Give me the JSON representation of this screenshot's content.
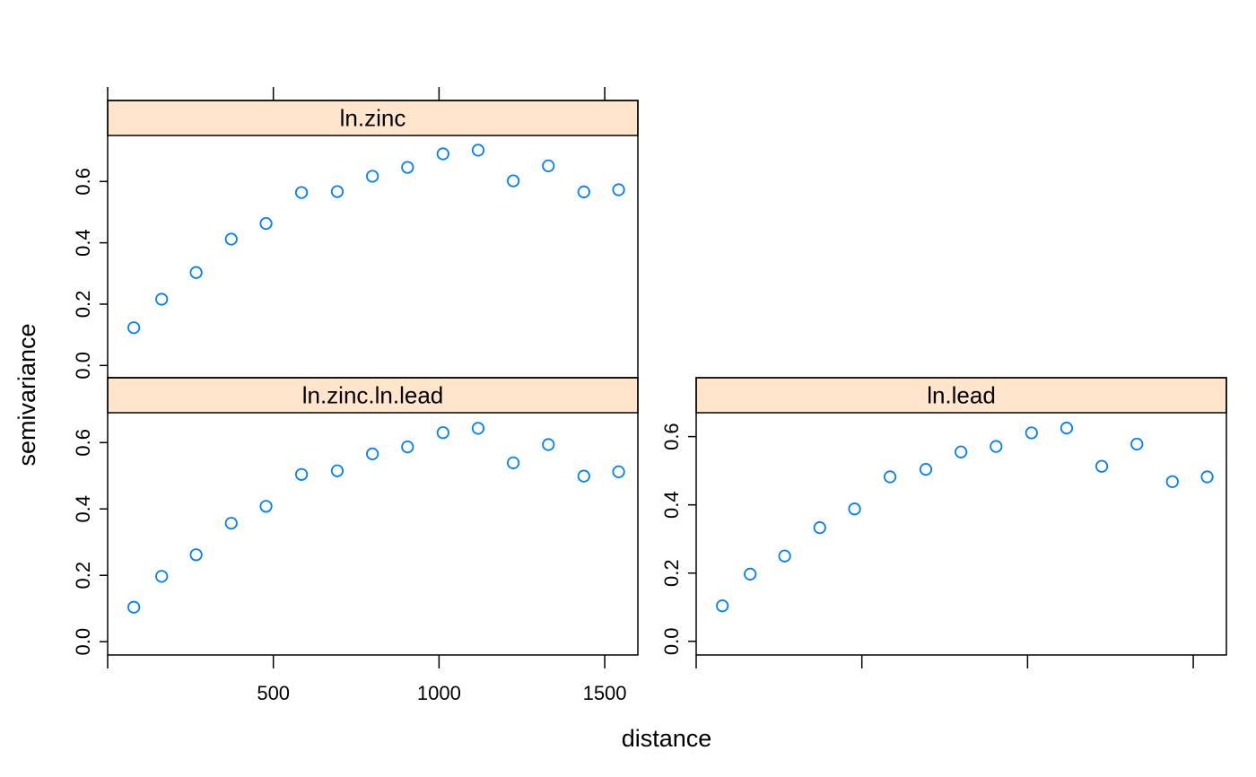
{
  "chart_data": {
    "type": "scatter",
    "xlabel": "distance",
    "ylabel": "semivariance",
    "xlim": [
      0,
      1600
    ],
    "x_ticks": [
      "500",
      "1000",
      "1500"
    ],
    "x_tick_values": [
      500,
      1000,
      1500
    ],
    "grid": false,
    "point_color": "#0080ff",
    "strip_color": "#ffe5cc",
    "distance": [
      79,
      163,
      267,
      373,
      478,
      585,
      693,
      799,
      905,
      1012,
      1118,
      1224,
      1330,
      1437,
      1542
    ],
    "panels": [
      {
        "name": "ln.zinc",
        "ylim": [
          -0.04,
          0.75
        ],
        "y_ticks": [
          "0.0",
          "0.2",
          "0.4",
          "0.6"
        ],
        "y_tick_values": [
          0.0,
          0.2,
          0.4,
          0.6
        ],
        "show_x_tick_labels": false,
        "values": [
          0.123,
          0.216,
          0.303,
          0.412,
          0.463,
          0.564,
          0.567,
          0.617,
          0.646,
          0.69,
          0.702,
          0.602,
          0.651,
          0.566,
          0.573
        ]
      },
      {
        "name": "ln.zinc.ln.lead",
        "ylim": [
          -0.04,
          0.69
        ],
        "y_ticks": [
          "0.0",
          "0.2",
          "0.4",
          "0.6"
        ],
        "y_tick_values": [
          0.0,
          0.2,
          0.4,
          0.6
        ],
        "show_x_tick_labels": true,
        "values": [
          0.104,
          0.197,
          0.262,
          0.357,
          0.408,
          0.504,
          0.515,
          0.566,
          0.587,
          0.63,
          0.643,
          0.539,
          0.594,
          0.499,
          0.512
        ]
      },
      {
        "name": "ln.lead",
        "ylim": [
          -0.04,
          0.67
        ],
        "y_ticks": [
          "0.0",
          "0.2",
          "0.4",
          "0.6"
        ],
        "y_tick_values": [
          0.0,
          0.2,
          0.4,
          0.6
        ],
        "show_x_tick_labels": false,
        "values": [
          0.104,
          0.197,
          0.25,
          0.333,
          0.388,
          0.482,
          0.504,
          0.555,
          0.571,
          0.611,
          0.625,
          0.513,
          0.578,
          0.468,
          0.482
        ]
      }
    ]
  }
}
